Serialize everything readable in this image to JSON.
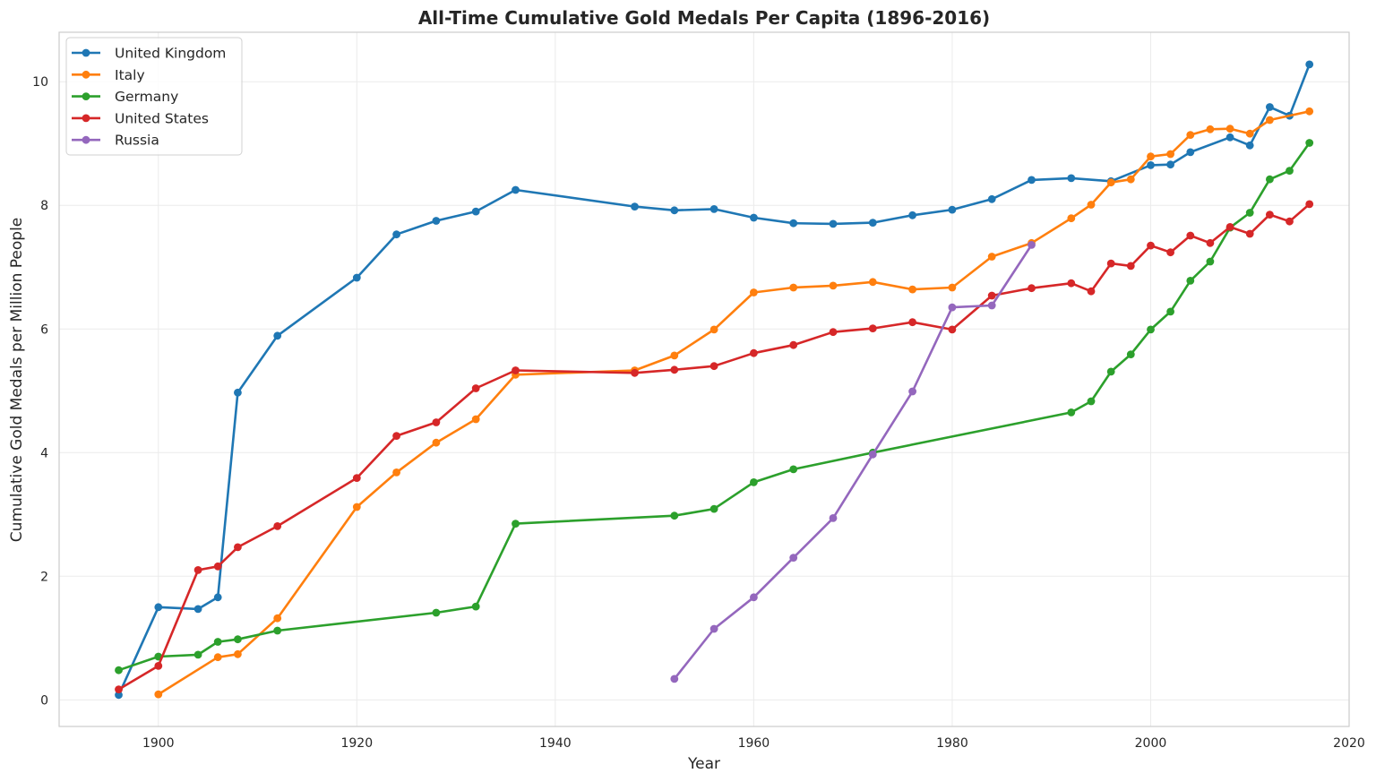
{
  "chart_data": {
    "type": "line",
    "title": "All-Time Cumulative Gold Medals Per Capita (1896-2016)",
    "xlabel": "Year",
    "ylabel": "Cumulative Gold Medals per Million People",
    "xlim": [
      1890,
      2020
    ],
    "ylim": [
      -0.43,
      10.8
    ],
    "xticks": [
      1900,
      1920,
      1940,
      1960,
      1980,
      2000,
      2020
    ],
    "yticks": [
      0,
      2,
      4,
      6,
      8,
      10
    ],
    "grid": true,
    "legend_position": "top-left",
    "series": [
      {
        "name": "United Kingdom",
        "color": "#1f77b4",
        "x": [
          1896,
          1900,
          1904,
          1906,
          1908,
          1912,
          1920,
          1924,
          1928,
          1932,
          1936,
          1948,
          1952,
          1956,
          1960,
          1964,
          1968,
          1972,
          1976,
          1980,
          1984,
          1988,
          1992,
          1996,
          2000,
          2002,
          2004,
          2008,
          2010,
          2012,
          2014,
          2016
        ],
        "y": [
          0.08,
          1.5,
          1.47,
          1.66,
          4.97,
          5.89,
          6.83,
          7.53,
          7.75,
          7.9,
          8.25,
          7.98,
          7.92,
          7.94,
          7.8,
          7.71,
          7.7,
          7.72,
          7.84,
          7.93,
          8.1,
          8.41,
          8.44,
          8.39,
          8.65,
          8.66,
          8.86,
          9.1,
          8.97,
          9.59,
          9.45,
          10.28
        ]
      },
      {
        "name": "Italy",
        "color": "#ff7f0e",
        "x": [
          1900,
          1906,
          1908,
          1912,
          1920,
          1924,
          1928,
          1932,
          1936,
          1948,
          1952,
          1956,
          1960,
          1964,
          1968,
          1972,
          1976,
          1980,
          1984,
          1988,
          1992,
          1994,
          1996,
          1998,
          2000,
          2002,
          2004,
          2006,
          2008,
          2010,
          2012,
          2016
        ],
        "y": [
          0.09,
          0.69,
          0.74,
          1.32,
          3.12,
          3.68,
          4.16,
          4.54,
          5.26,
          5.33,
          5.57,
          5.99,
          6.59,
          6.67,
          6.7,
          6.76,
          6.64,
          6.67,
          7.17,
          7.39,
          7.79,
          8.01,
          8.37,
          8.42,
          8.79,
          8.83,
          9.14,
          9.23,
          9.24,
          9.16,
          9.38,
          9.52
        ]
      },
      {
        "name": "Germany",
        "color": "#2ca02c",
        "x": [
          1896,
          1900,
          1904,
          1906,
          1908,
          1912,
          1928,
          1932,
          1936,
          1952,
          1956,
          1960,
          1964,
          1972,
          1992,
          1994,
          1996,
          1998,
          2000,
          2002,
          2004,
          2006,
          2008,
          2010,
          2012,
          2014,
          2016
        ],
        "y": [
          0.48,
          0.7,
          0.73,
          0.94,
          0.98,
          1.12,
          1.41,
          1.51,
          2.85,
          2.98,
          3.09,
          3.52,
          3.73,
          4.0,
          4.65,
          4.83,
          5.31,
          5.59,
          5.99,
          6.28,
          6.78,
          7.09,
          7.64,
          7.88,
          8.42,
          8.56,
          9.01
        ]
      },
      {
        "name": "United States",
        "color": "#d62728",
        "x": [
          1896,
          1900,
          1904,
          1906,
          1908,
          1912,
          1920,
          1924,
          1928,
          1932,
          1936,
          1948,
          1952,
          1956,
          1960,
          1964,
          1968,
          1972,
          1976,
          1980,
          1984,
          1988,
          1992,
          1994,
          1996,
          1998,
          2000,
          2002,
          2004,
          2006,
          2008,
          2010,
          2012,
          2014,
          2016
        ],
        "y": [
          0.17,
          0.55,
          2.1,
          2.16,
          2.47,
          2.81,
          3.59,
          4.27,
          4.49,
          5.04,
          5.33,
          5.29,
          5.34,
          5.4,
          5.61,
          5.74,
          5.95,
          6.01,
          6.11,
          5.99,
          6.54,
          6.66,
          6.74,
          6.61,
          7.06,
          7.02,
          7.35,
          7.24,
          7.51,
          7.39,
          7.65,
          7.54,
          7.85,
          7.74,
          8.02
        ]
      },
      {
        "name": "Russia",
        "color": "#9467bd",
        "x": [
          1952,
          1956,
          1960,
          1964,
          1968,
          1972,
          1976,
          1980,
          1984,
          1988
        ],
        "y": [
          0.34,
          1.15,
          1.66,
          2.3,
          2.94,
          3.97,
          4.99,
          6.35,
          6.38,
          7.36
        ]
      }
    ]
  }
}
